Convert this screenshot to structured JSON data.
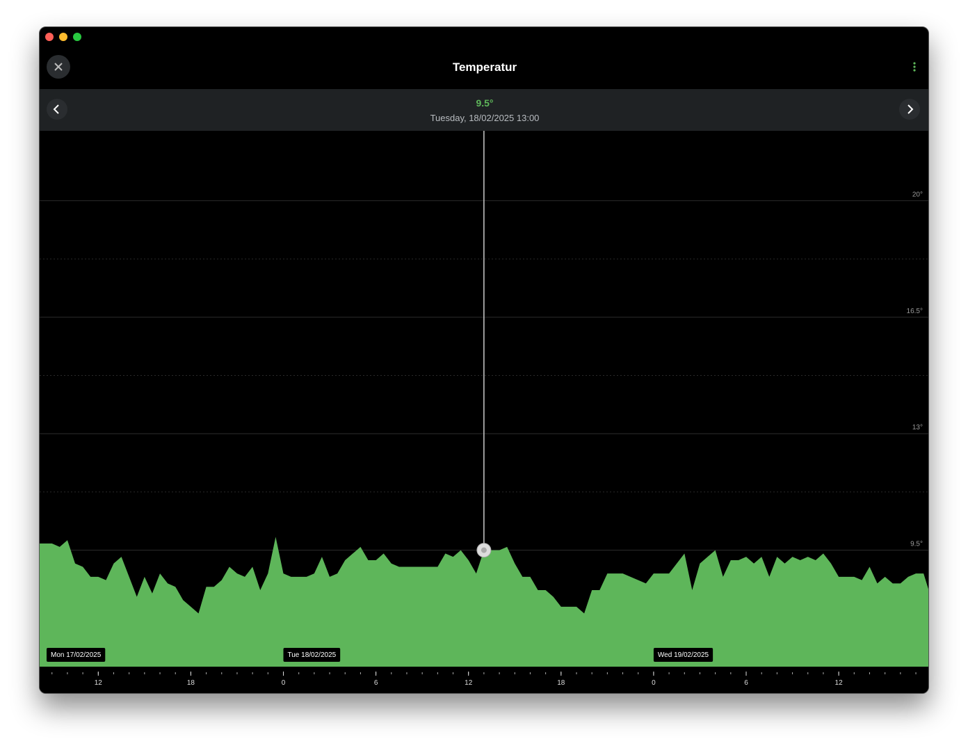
{
  "header": {
    "title": "Temperatur"
  },
  "readout": {
    "value": "9.5°",
    "date": "Tuesday, 18/02/2025 13:00"
  },
  "chart_data": {
    "type": "area",
    "color": "#5eb65a",
    "xlim": [
      8.2,
      65.9
    ],
    "ylim": [
      6,
      22.1
    ],
    "yticks": [
      {
        "value": 9.5,
        "label": "9.5°"
      },
      {
        "value": 13,
        "label": "13°"
      },
      {
        "value": 16.5,
        "label": "16.5°"
      },
      {
        "value": 20,
        "label": "20°"
      }
    ],
    "minor_yticks": [
      11.25,
      14.75,
      18.25
    ],
    "xticks": [
      {
        "value": 12,
        "label": "12"
      },
      {
        "value": 18,
        "label": "18"
      },
      {
        "value": 24,
        "label": "0"
      },
      {
        "value": 30,
        "label": "6"
      },
      {
        "value": 36,
        "label": "12"
      },
      {
        "value": 42,
        "label": "18"
      },
      {
        "value": 48,
        "label": "0"
      },
      {
        "value": 54,
        "label": "6"
      },
      {
        "value": 60,
        "label": "12"
      }
    ],
    "minor_xtick_step": 1,
    "day_markers": [
      {
        "x": 0,
        "label": "Mon 17/02/2025"
      },
      {
        "x": 24,
        "label": "Tue 18/02/2025"
      },
      {
        "x": 48,
        "label": "Wed 19/02/2025"
      }
    ],
    "cursor": {
      "x": 37,
      "y": 9.5
    },
    "x": [
      8.2,
      8.5,
      9,
      9.5,
      10,
      10.5,
      11,
      11.5,
      12,
      12.5,
      13,
      13.5,
      14,
      14.5,
      15,
      15.5,
      16,
      16.5,
      17,
      17.5,
      18,
      18.5,
      19,
      19.5,
      20,
      20.5,
      21,
      21.5,
      22,
      22.5,
      23,
      23.5,
      24,
      24.5,
      25,
      25.5,
      26,
      26.5,
      27,
      27.5,
      28,
      28.5,
      29,
      29.5,
      30,
      30.5,
      31,
      31.5,
      32,
      32.5,
      33,
      33.5,
      34,
      34.5,
      35,
      35.5,
      36,
      36.5,
      37,
      37.5,
      38,
      38.5,
      39,
      39.5,
      40,
      40.5,
      41,
      41.5,
      42,
      42.5,
      43,
      43.5,
      44,
      44.5,
      45,
      45.5,
      46,
      46.5,
      47,
      47.5,
      48,
      48.5,
      49,
      49.5,
      50,
      50.5,
      51,
      51.5,
      52,
      52.5,
      53,
      53.5,
      54,
      54.5,
      55,
      55.5,
      56,
      56.5,
      57,
      57.5,
      58,
      58.5,
      59,
      59.5,
      60,
      60.5,
      61,
      61.5,
      62,
      62.5,
      63,
      63.5,
      64,
      64.5,
      65,
      65.5,
      65.9
    ],
    "values": [
      9.7,
      9.7,
      9.7,
      9.6,
      9.8,
      9.1,
      9.0,
      8.7,
      8.7,
      8.6,
      9.1,
      9.3,
      8.7,
      8.1,
      8.7,
      8.2,
      8.8,
      8.5,
      8.4,
      8.0,
      7.8,
      7.6,
      8.4,
      8.4,
      8.6,
      9.0,
      8.8,
      8.7,
      9.0,
      8.3,
      8.8,
      9.9,
      8.8,
      8.7,
      8.7,
      8.7,
      8.8,
      9.3,
      8.7,
      8.8,
      9.2,
      9.4,
      9.6,
      9.2,
      9.2,
      9.4,
      9.1,
      9.0,
      9.0,
      9.0,
      9.0,
      9.0,
      9.0,
      9.4,
      9.3,
      9.5,
      9.2,
      8.8,
      9.5,
      9.5,
      9.5,
      9.6,
      9.1,
      8.7,
      8.7,
      8.3,
      8.3,
      8.1,
      7.8,
      7.8,
      7.8,
      7.6,
      8.3,
      8.3,
      8.8,
      8.8,
      8.8,
      8.7,
      8.6,
      8.5,
      8.8,
      8.8,
      8.8,
      9.1,
      9.4,
      8.3,
      9.1,
      9.3,
      9.5,
      8.7,
      9.2,
      9.2,
      9.3,
      9.1,
      9.3,
      8.7,
      9.3,
      9.1,
      9.3,
      9.2,
      9.3,
      9.2,
      9.4,
      9.1,
      8.7,
      8.7,
      8.7,
      8.6,
      9.0,
      8.5,
      8.7,
      8.5,
      8.5,
      8.7,
      8.8,
      8.8,
      8.2
    ]
  }
}
